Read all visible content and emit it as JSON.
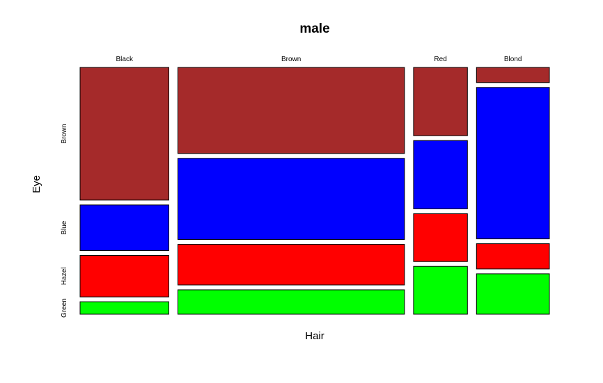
{
  "chart_data": {
    "type": "mosaic",
    "title": "male",
    "xlabel": "Hair",
    "ylabel": "Eye",
    "hair_categories": [
      "Black",
      "Brown",
      "Red",
      "Blond"
    ],
    "eye_categories": [
      "Brown",
      "Blue",
      "Hazel",
      "Green"
    ],
    "eye_colors": [
      "#a52a2a",
      "#0000ff",
      "#ff0000",
      "#00ff00"
    ],
    "counts": {
      "Black": [
        32,
        11,
        10,
        3
      ],
      "Brown": [
        53,
        50,
        25,
        15
      ],
      "Red": [
        10,
        10,
        7,
        7
      ],
      "Blond": [
        3,
        30,
        5,
        8
      ]
    }
  }
}
